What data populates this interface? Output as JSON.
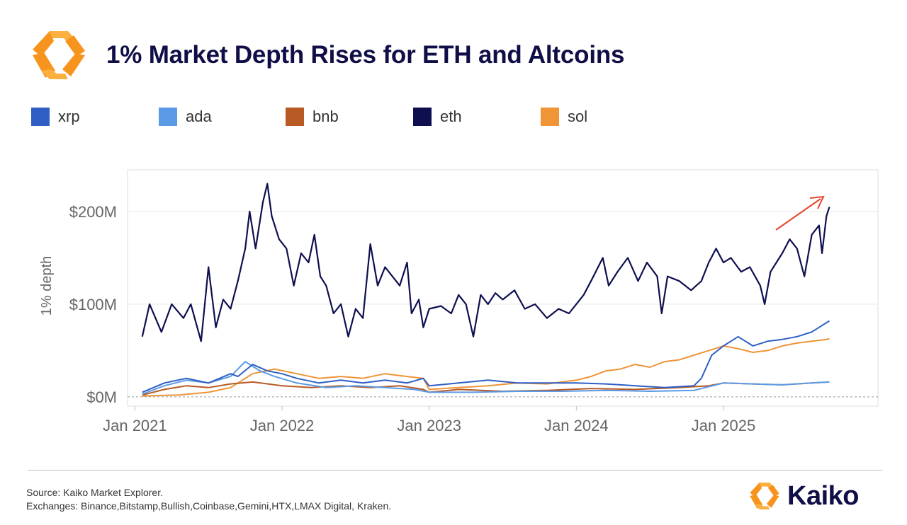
{
  "header": {
    "title": "1% Market Depth Rises for ETH and Altcoins"
  },
  "legend": [
    {
      "key": "xrp",
      "label": "xrp",
      "color": "#2f5fc4"
    },
    {
      "key": "ada",
      "label": "ada",
      "color": "#5a9ae6"
    },
    {
      "key": "bnb",
      "label": "bnb",
      "color": "#b85a24"
    },
    {
      "key": "eth",
      "label": "eth",
      "color": "#0e0f4f"
    },
    {
      "key": "sol",
      "label": "sol",
      "color": "#ef9437"
    }
  ],
  "chart_data": {
    "type": "line",
    "title": "1% Market Depth Rises for ETH and Altcoins",
    "xlabel": "",
    "ylabel": "1% depth",
    "x_ticks": [
      "Jan 2021",
      "Jan 2022",
      "Jan 2023",
      "Jan 2024",
      "Jan 2025"
    ],
    "y_ticks": [
      "$0M",
      "$100M",
      "$200M"
    ],
    "y_tick_values": [
      0,
      100,
      200
    ],
    "ylim": [
      -10,
      245
    ],
    "xlim": [
      2020.95,
      2026.05
    ],
    "grid": true,
    "units": "USD millions",
    "annotation": "red arrow pointing upward at latest values",
    "series": [
      {
        "name": "eth",
        "color": "#0e0f4f",
        "points": [
          [
            2021.05,
            65
          ],
          [
            2021.1,
            100
          ],
          [
            2021.18,
            70
          ],
          [
            2021.25,
            100
          ],
          [
            2021.33,
            85
          ],
          [
            2021.38,
            100
          ],
          [
            2021.45,
            60
          ],
          [
            2021.5,
            140
          ],
          [
            2021.55,
            75
          ],
          [
            2021.6,
            105
          ],
          [
            2021.65,
            95
          ],
          [
            2021.7,
            125
          ],
          [
            2021.75,
            160
          ],
          [
            2021.78,
            200
          ],
          [
            2021.82,
            160
          ],
          [
            2021.87,
            210
          ],
          [
            2021.9,
            230
          ],
          [
            2021.93,
            195
          ],
          [
            2021.98,
            170
          ],
          [
            2022.03,
            160
          ],
          [
            2022.08,
            120
          ],
          [
            2022.13,
            155
          ],
          [
            2022.18,
            145
          ],
          [
            2022.22,
            175
          ],
          [
            2022.26,
            130
          ],
          [
            2022.3,
            120
          ],
          [
            2022.35,
            90
          ],
          [
            2022.4,
            100
          ],
          [
            2022.45,
            65
          ],
          [
            2022.5,
            95
          ],
          [
            2022.55,
            85
          ],
          [
            2022.6,
            165
          ],
          [
            2022.65,
            120
          ],
          [
            2022.7,
            140
          ],
          [
            2022.75,
            130
          ],
          [
            2022.8,
            120
          ],
          [
            2022.85,
            145
          ],
          [
            2022.88,
            90
          ],
          [
            2022.93,
            105
          ],
          [
            2022.96,
            75
          ],
          [
            2023.0,
            95
          ],
          [
            2023.08,
            98
          ],
          [
            2023.15,
            90
          ],
          [
            2023.2,
            110
          ],
          [
            2023.25,
            100
          ],
          [
            2023.3,
            65
          ],
          [
            2023.35,
            110
          ],
          [
            2023.4,
            100
          ],
          [
            2023.45,
            112
          ],
          [
            2023.5,
            105
          ],
          [
            2023.58,
            115
          ],
          [
            2023.65,
            95
          ],
          [
            2023.72,
            100
          ],
          [
            2023.8,
            85
          ],
          [
            2023.88,
            95
          ],
          [
            2023.95,
            90
          ],
          [
            2024.0,
            100
          ],
          [
            2024.05,
            110
          ],
          [
            2024.1,
            125
          ],
          [
            2024.18,
            150
          ],
          [
            2024.22,
            120
          ],
          [
            2024.28,
            135
          ],
          [
            2024.35,
            150
          ],
          [
            2024.42,
            125
          ],
          [
            2024.48,
            145
          ],
          [
            2024.55,
            130
          ],
          [
            2024.58,
            90
          ],
          [
            2024.62,
            130
          ],
          [
            2024.7,
            125
          ],
          [
            2024.78,
            115
          ],
          [
            2024.85,
            125
          ],
          [
            2024.9,
            145
          ],
          [
            2024.95,
            160
          ],
          [
            2025.0,
            145
          ],
          [
            2025.05,
            150
          ],
          [
            2025.12,
            135
          ],
          [
            2025.18,
            140
          ],
          [
            2025.25,
            120
          ],
          [
            2025.28,
            100
          ],
          [
            2025.32,
            135
          ],
          [
            2025.4,
            155
          ],
          [
            2025.45,
            170
          ],
          [
            2025.5,
            160
          ],
          [
            2025.55,
            130
          ],
          [
            2025.6,
            175
          ],
          [
            2025.65,
            185
          ],
          [
            2025.67,
            155
          ],
          [
            2025.7,
            195
          ],
          [
            2025.72,
            205
          ]
        ]
      },
      {
        "name": "xrp",
        "color": "#2f5fc4",
        "points": [
          [
            2021.05,
            5
          ],
          [
            2021.2,
            15
          ],
          [
            2021.35,
            20
          ],
          [
            2021.5,
            15
          ],
          [
            2021.65,
            25
          ],
          [
            2021.7,
            22
          ],
          [
            2021.8,
            35
          ],
          [
            2021.9,
            28
          ],
          [
            2022.0,
            25
          ],
          [
            2022.1,
            20
          ],
          [
            2022.25,
            15
          ],
          [
            2022.4,
            18
          ],
          [
            2022.55,
            15
          ],
          [
            2022.7,
            18
          ],
          [
            2022.85,
            15
          ],
          [
            2022.96,
            20
          ],
          [
            2023.0,
            12
          ],
          [
            2023.2,
            15
          ],
          [
            2023.4,
            18
          ],
          [
            2023.6,
            15
          ],
          [
            2023.8,
            15
          ],
          [
            2024.0,
            15
          ],
          [
            2024.2,
            14
          ],
          [
            2024.4,
            12
          ],
          [
            2024.6,
            10
          ],
          [
            2024.8,
            12
          ],
          [
            2024.85,
            20
          ],
          [
            2024.92,
            45
          ],
          [
            2025.0,
            55
          ],
          [
            2025.05,
            60
          ],
          [
            2025.1,
            65
          ],
          [
            2025.2,
            55
          ],
          [
            2025.3,
            60
          ],
          [
            2025.4,
            62
          ],
          [
            2025.5,
            65
          ],
          [
            2025.6,
            70
          ],
          [
            2025.65,
            75
          ],
          [
            2025.7,
            80
          ],
          [
            2025.72,
            82
          ]
        ]
      },
      {
        "name": "ada",
        "color": "#5a9ae6",
        "points": [
          [
            2021.05,
            3
          ],
          [
            2021.2,
            12
          ],
          [
            2021.35,
            18
          ],
          [
            2021.5,
            15
          ],
          [
            2021.65,
            22
          ],
          [
            2021.7,
            30
          ],
          [
            2021.75,
            38
          ],
          [
            2021.85,
            28
          ],
          [
            2021.95,
            22
          ],
          [
            2022.1,
            15
          ],
          [
            2022.3,
            10
          ],
          [
            2022.5,
            12
          ],
          [
            2022.7,
            10
          ],
          [
            2022.9,
            8
          ],
          [
            2023.0,
            5
          ],
          [
            2023.3,
            5
          ],
          [
            2023.6,
            6
          ],
          [
            2023.9,
            6
          ],
          [
            2024.2,
            7
          ],
          [
            2024.5,
            6
          ],
          [
            2024.8,
            7
          ],
          [
            2025.0,
            15
          ],
          [
            2025.2,
            14
          ],
          [
            2025.4,
            13
          ],
          [
            2025.6,
            15
          ],
          [
            2025.72,
            16
          ]
        ]
      },
      {
        "name": "bnb",
        "color": "#b85a24",
        "points": [
          [
            2021.05,
            2
          ],
          [
            2021.2,
            8
          ],
          [
            2021.35,
            12
          ],
          [
            2021.5,
            10
          ],
          [
            2021.65,
            14
          ],
          [
            2021.8,
            16
          ],
          [
            2022.0,
            12
          ],
          [
            2022.2,
            10
          ],
          [
            2022.4,
            12
          ],
          [
            2022.6,
            10
          ],
          [
            2022.8,
            12
          ],
          [
            2022.96,
            8
          ],
          [
            2023.0,
            5
          ],
          [
            2023.2,
            8
          ],
          [
            2023.5,
            6
          ],
          [
            2023.8,
            7
          ],
          [
            2024.1,
            9
          ],
          [
            2024.4,
            8
          ],
          [
            2024.7,
            10
          ],
          [
            2024.9,
            12
          ],
          [
            2025.0,
            15
          ],
          [
            2025.2,
            14
          ],
          [
            2025.4,
            13
          ],
          [
            2025.6,
            15
          ],
          [
            2025.72,
            16
          ]
        ]
      },
      {
        "name": "sol",
        "color": "#ef9437",
        "points": [
          [
            2021.05,
            1
          ],
          [
            2021.3,
            2
          ],
          [
            2021.5,
            5
          ],
          [
            2021.65,
            10
          ],
          [
            2021.8,
            25
          ],
          [
            2021.95,
            30
          ],
          [
            2022.1,
            25
          ],
          [
            2022.25,
            20
          ],
          [
            2022.4,
            22
          ],
          [
            2022.55,
            20
          ],
          [
            2022.7,
            25
          ],
          [
            2022.85,
            22
          ],
          [
            2022.96,
            20
          ],
          [
            2023.0,
            8
          ],
          [
            2023.2,
            10
          ],
          [
            2023.4,
            12
          ],
          [
            2023.6,
            15
          ],
          [
            2023.8,
            14
          ],
          [
            2024.0,
            18
          ],
          [
            2024.1,
            22
          ],
          [
            2024.2,
            28
          ],
          [
            2024.3,
            30
          ],
          [
            2024.4,
            35
          ],
          [
            2024.5,
            32
          ],
          [
            2024.6,
            38
          ],
          [
            2024.7,
            40
          ],
          [
            2024.8,
            45
          ],
          [
            2024.9,
            50
          ],
          [
            2025.0,
            55
          ],
          [
            2025.1,
            52
          ],
          [
            2025.2,
            48
          ],
          [
            2025.3,
            50
          ],
          [
            2025.4,
            55
          ],
          [
            2025.5,
            58
          ],
          [
            2025.6,
            60
          ],
          [
            2025.7,
            62
          ],
          [
            2025.72,
            63
          ]
        ]
      }
    ]
  },
  "footer": {
    "source_line": "Source: Kaiko Market Explorer.",
    "exchanges_line": "Exchanges: Binance,Bitstamp,Bullish,Coinbase,Gemini,HTX,LMAX Digital, Kraken.",
    "brand_name": "Kaiko"
  },
  "colors": {
    "title": "#0f0e47",
    "arrow": "#e3452e",
    "grid": "#e6e6e6",
    "logo_orange": "#f7941d",
    "logo_light": "#fbb040"
  }
}
